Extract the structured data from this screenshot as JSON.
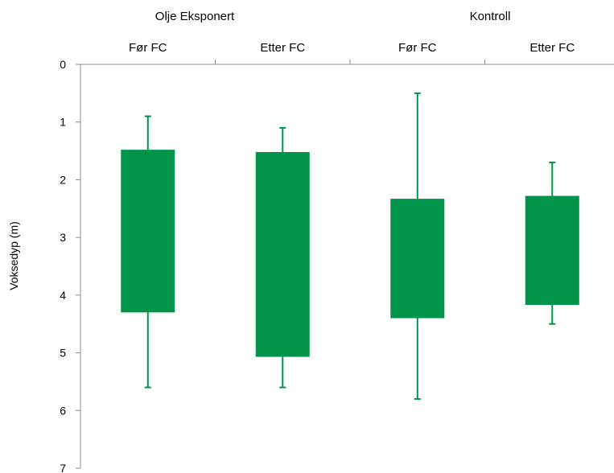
{
  "chart_data": {
    "type": "box",
    "groups": [
      {
        "name": "Olje Eksponert",
        "categories": [
          "Før FC",
          "Etter FC"
        ]
      },
      {
        "name": "Kontroll",
        "categories": [
          "Før FC",
          "Etter FC"
        ]
      }
    ],
    "categories": [
      "Før FC",
      "Etter FC",
      "Før FC",
      "Etter FC"
    ],
    "boxes": [
      {
        "min": 0.9,
        "q1": 1.48,
        "q3": 4.3,
        "max": 5.6
      },
      {
        "min": 1.1,
        "q1": 1.52,
        "q3": 5.07,
        "max": 5.6
      },
      {
        "min": 0.5,
        "q1": 2.33,
        "q3": 4.4,
        "max": 5.8
      },
      {
        "min": 1.7,
        "q1": 2.28,
        "q3": 4.17,
        "max": 4.5
      }
    ],
    "ylabel": "Voksedyp (m)",
    "ylim": [
      0,
      7
    ],
    "y_inverted": true,
    "y_ticks": [
      "0",
      "1",
      "2",
      "3",
      "4",
      "5",
      "6",
      "7"
    ],
    "x_axis_position": "top",
    "grid": false,
    "colors": {
      "box": "#00934a",
      "axis": "#8c8c8c",
      "text": "#000000"
    }
  }
}
